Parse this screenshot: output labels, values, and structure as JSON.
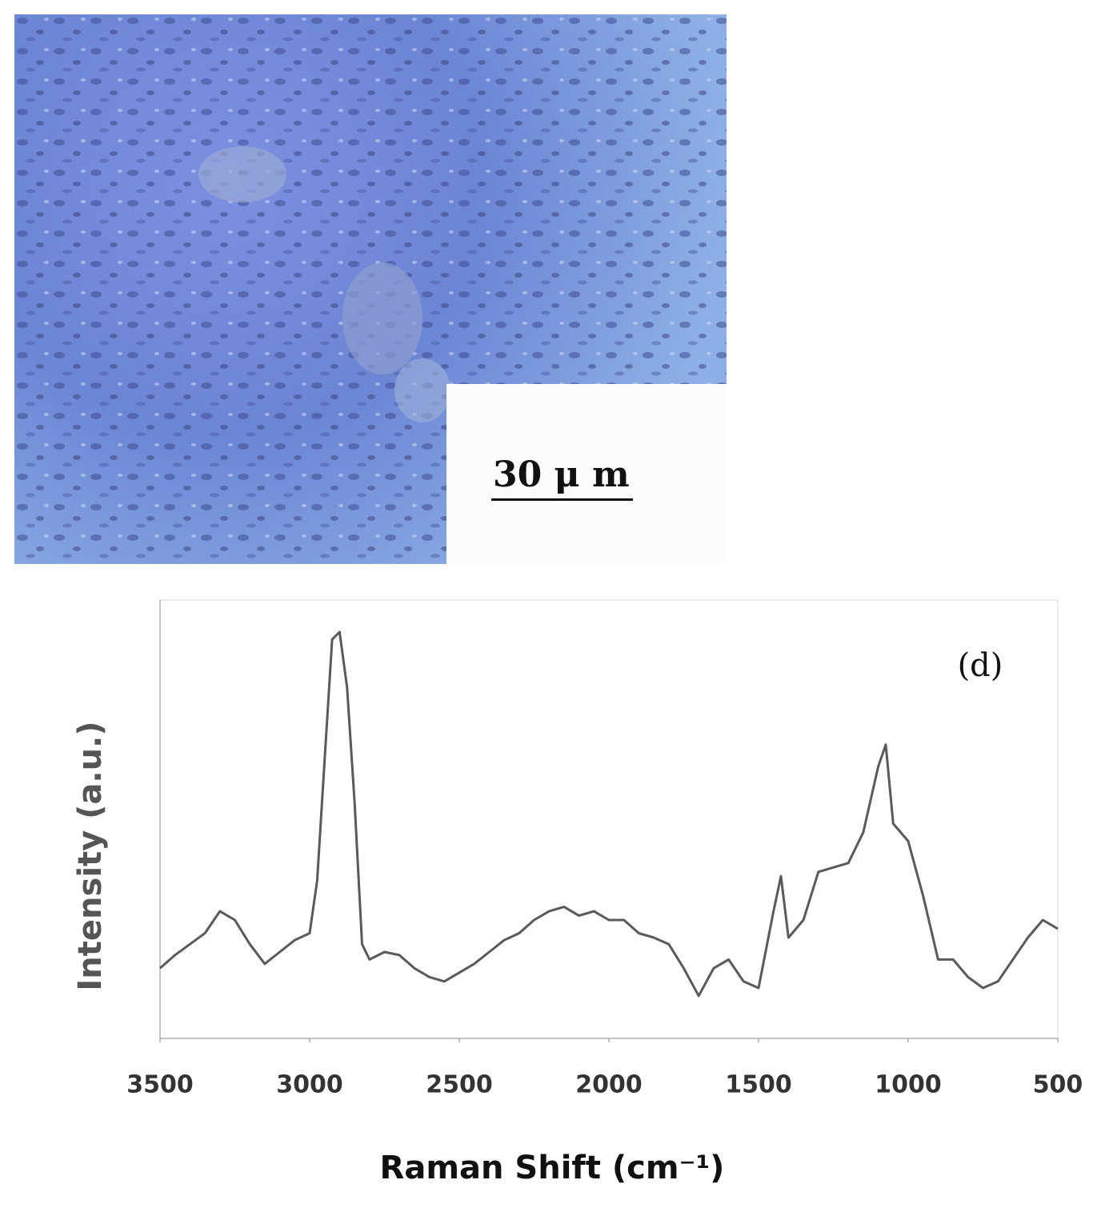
{
  "micrograph": {
    "scale_bar_label": "30 μ m"
  },
  "chart_data": {
    "type": "line",
    "annotation": "(d)",
    "x_label": "Raman Shift (cm⁻¹)",
    "y_label": "Intensity (a.u.)",
    "color": "#5a5a5a",
    "x": [
      3500,
      3450,
      3400,
      3350,
      3300,
      3250,
      3200,
      3150,
      3100,
      3050,
      3000,
      2975,
      2950,
      2925,
      2900,
      2875,
      2850,
      2825,
      2800,
      2750,
      2700,
      2650,
      2600,
      2550,
      2500,
      2450,
      2400,
      2350,
      2300,
      2250,
      2200,
      2150,
      2100,
      2050,
      2000,
      1950,
      1900,
      1850,
      1800,
      1750,
      1700,
      1650,
      1600,
      1550,
      1500,
      1450,
      1425,
      1400,
      1350,
      1300,
      1250,
      1200,
      1150,
      1100,
      1075,
      1050,
      1000,
      950,
      900,
      850,
      800,
      750,
      700,
      650,
      600,
      550,
      500
    ],
    "values": [
      16,
      19,
      21.5,
      24,
      29,
      27,
      21.5,
      17,
      19.7,
      22.4,
      24,
      36,
      63.5,
      91,
      92.7,
      80,
      54,
      21.5,
      18,
      19.7,
      19,
      16,
      14,
      13,
      15,
      17,
      19.7,
      22.4,
      24,
      27,
      29,
      30,
      28,
      29,
      27,
      27,
      24,
      23,
      21.5,
      16,
      9.7,
      16,
      18,
      13,
      11.5,
      29,
      37,
      23,
      27,
      38,
      39,
      40,
      47,
      62,
      67,
      49,
      45,
      32.5,
      18,
      18,
      14,
      11.5,
      13,
      18,
      23,
      27,
      25
    ],
    "xlim": [
      3500,
      500
    ],
    "xticks": [
      3500,
      3000,
      2500,
      2000,
      1500,
      1000,
      500
    ],
    "ylim": [
      0,
      100
    ],
    "grid": false
  }
}
